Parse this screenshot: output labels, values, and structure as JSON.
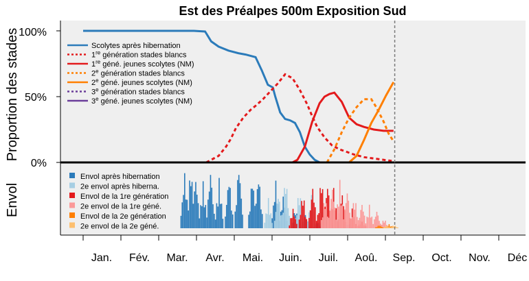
{
  "chart_data": {
    "type": "line",
    "title": "Est des Préalpes 500m Exposition Sud",
    "ylabel_top": "Proportion des stades",
    "ylabel_bottom": "Envol",
    "y_ticks": [
      "100%",
      "50%",
      "0%"
    ],
    "ylim": [
      0,
      1.1
    ],
    "months": [
      "Jan.",
      "Fév.",
      "Mar.",
      "Avr.",
      "Mai.",
      "Juin.",
      "Juil.",
      "Aoû.",
      "Sep.",
      "Oct.",
      "Nov.",
      "Déc"
    ],
    "today_marker_day": 253,
    "grid": false,
    "legend_top": {
      "position": "top-left",
      "entries": [
        {
          "text": "Scolytes après hibernation",
          "color": "#2b7bba",
          "dash": false
        },
        {
          "text": "1re génération stades blancs",
          "sup": "re",
          "color": "#e31a1c",
          "dash": true
        },
        {
          "text": "1re géné. jeunes scolytes (NM)",
          "sup": "re",
          "color": "#e31a1c",
          "dash": false
        },
        {
          "text": "2e génération stades blancs",
          "sup": "e",
          "color": "#ff7f00",
          "dash": true
        },
        {
          "text": "2e géné. jeunes scolytes (NM)",
          "sup": "e",
          "color": "#ff7f00",
          "dash": false
        },
        {
          "text": "3e génération stades blancs",
          "sup": "e",
          "color": "#6a3d9a",
          "dash": true
        },
        {
          "text": "3e géné. jeunes scolytes (NM)",
          "sup": "e",
          "color": "#6a3d9a",
          "dash": false
        }
      ]
    },
    "legend_bottom": {
      "position": "bottom-left",
      "entries": [
        {
          "text": "Envol après hibernation",
          "color": "#2b7bba"
        },
        {
          "text": "2e envol après hiberna.",
          "color": "#a6cee3"
        },
        {
          "text": "Envol de la 1re génération",
          "color": "#e31a1c"
        },
        {
          "text": "2e envol de la 1re géné.",
          "color": "#fb9a99"
        },
        {
          "text": "Envol de la 2e génération",
          "color": "#ff7f00"
        },
        {
          "text": "2e envol de la 2e géné.",
          "color": "#fdbf6f"
        }
      ]
    },
    "series": [
      {
        "name": "Scolytes après hibernation",
        "color": "#2b7bba",
        "dash": false,
        "x": [
          0,
          60,
          90,
          99,
          100,
          104,
          110,
          118,
          126,
          132,
          140,
          145,
          150,
          154,
          156,
          160,
          164,
          168,
          172,
          176,
          180,
          184,
          188,
          192
        ],
        "y": [
          1.0,
          1.0,
          1.0,
          0.995,
          0.98,
          0.92,
          0.88,
          0.85,
          0.83,
          0.82,
          0.8,
          0.7,
          0.59,
          0.57,
          0.5,
          0.38,
          0.33,
          0.32,
          0.3,
          0.23,
          0.12,
          0.06,
          0.02,
          0.0
        ]
      },
      {
        "name": "1re génération stades blancs",
        "color": "#e31a1c",
        "dash": true,
        "x": [
          100,
          110,
          116,
          120,
          124,
          130,
          136,
          140,
          146,
          152,
          158,
          164,
          170,
          176,
          182,
          186,
          190,
          196,
          202,
          208,
          214,
          220,
          228,
          236,
          244,
          252
        ],
        "y": [
          0.0,
          0.05,
          0.12,
          0.18,
          0.26,
          0.34,
          0.4,
          0.43,
          0.48,
          0.54,
          0.6,
          0.67,
          0.64,
          0.55,
          0.44,
          0.35,
          0.27,
          0.19,
          0.13,
          0.1,
          0.08,
          0.06,
          0.04,
          0.03,
          0.02,
          0.01
        ]
      },
      {
        "name": "1re géné. jeunes scolytes (NM)",
        "color": "#e31a1c",
        "dash": false,
        "x": [
          170,
          174,
          180,
          186,
          192,
          196,
          200,
          204,
          210,
          216,
          222,
          228,
          236,
          244,
          252
        ],
        "y": [
          0.0,
          0.02,
          0.12,
          0.31,
          0.45,
          0.5,
          0.52,
          0.53,
          0.46,
          0.34,
          0.29,
          0.27,
          0.25,
          0.24,
          0.24
        ]
      },
      {
        "name": "2e génération stades blancs",
        "color": "#ff7f00",
        "dash": true,
        "x": [
          198,
          204,
          210,
          216,
          222,
          228,
          234,
          238,
          244,
          248,
          252
        ],
        "y": [
          0.0,
          0.1,
          0.23,
          0.34,
          0.42,
          0.48,
          0.48,
          0.42,
          0.31,
          0.22,
          0.16
        ]
      },
      {
        "name": "2e géné. jeunes scolytes (NM)",
        "color": "#ff7f00",
        "dash": false,
        "x": [
          216,
          222,
          228,
          234,
          240,
          246,
          252
        ],
        "y": [
          0.0,
          0.05,
          0.17,
          0.3,
          0.4,
          0.51,
          0.61
        ]
      }
    ],
    "flight_bars": {
      "unit": "relative",
      "groups": [
        {
          "name": "Envol après hibernation",
          "color": "#2b7bba",
          "peaks": [
            [
              82,
              0.85
            ],
            [
              87,
              0.95
            ],
            [
              91,
              0.8
            ],
            [
              97,
              0.7
            ],
            [
              103,
              0.9
            ],
            [
              110,
              0.75
            ],
            [
              118,
              0.82
            ],
            [
              126,
              1.0
            ],
            [
              137,
              0.8
            ],
            [
              142,
              0.85
            ],
            [
              156,
              0.72
            ],
            [
              162,
              0.5
            ],
            [
              172,
              0.3
            ],
            [
              180,
              0.2
            ],
            [
              190,
              0.1
            ]
          ]
        },
        {
          "name": "2e envol après hiberna.",
          "color": "#a6cee3",
          "peaks": [
            [
              150,
              0.45
            ],
            [
              158,
              0.55
            ],
            [
              164,
              0.8
            ],
            [
              175,
              0.6
            ],
            [
              185,
              0.5
            ],
            [
              195,
              0.35
            ],
            [
              205,
              0.2
            ],
            [
              215,
              0.1
            ]
          ]
        },
        {
          "name": "Envol de la 1re génération",
          "color": "#e31a1c",
          "peaks": [
            [
              170,
              0.3
            ],
            [
              178,
              0.55
            ],
            [
              186,
              0.65
            ],
            [
              193,
              0.8
            ],
            [
              198,
              0.7
            ],
            [
              203,
              0.6
            ],
            [
              210,
              0.55
            ],
            [
              218,
              0.3
            ],
            [
              226,
              0.15
            ]
          ]
        },
        {
          "name": "2e envol de la 1re géné.",
          "color": "#fb9a99",
          "peaks": [
            [
              196,
              0.5
            ],
            [
              202,
              0.65
            ],
            [
              208,
              0.72
            ],
            [
              214,
              0.6
            ],
            [
              220,
              0.5
            ],
            [
              226,
              0.4
            ],
            [
              232,
              0.35
            ],
            [
              238,
              0.28
            ],
            [
              244,
              0.15
            ]
          ]
        },
        {
          "name": "Envol de la 2e génération",
          "color": "#ff7f00",
          "peaks": [
            [
              240,
              0.05
            ],
            [
              248,
              0.06
            ]
          ]
        },
        {
          "name": "2e envol de la 2e géné.",
          "color": "#fdbf6f",
          "peaks": [
            [
              246,
              0.04
            ],
            [
              252,
              0.05
            ]
          ]
        }
      ]
    }
  }
}
